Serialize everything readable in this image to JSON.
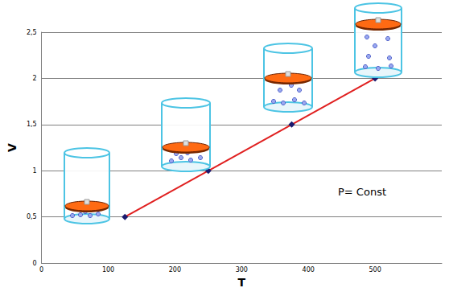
{
  "chart_data": {
    "type": "line",
    "x": [
      125,
      250,
      375,
      500
    ],
    "values": [
      0.5,
      1,
      1.5,
      2
    ],
    "color": "#e02020",
    "marker": "diamond",
    "xlabel": "T",
    "ylabel": "V",
    "xlim": [
      0,
      600
    ],
    "xticks": [
      0,
      100,
      200,
      300,
      400,
      500
    ],
    "ylim": [
      0,
      2.5
    ],
    "yticks": [
      0,
      {
        "value": 0.5,
        "label": "0,5"
      },
      1,
      {
        "value": 1.5,
        "label": "1,5"
      },
      2,
      {
        "value": 2.5,
        "label": "2,5"
      }
    ],
    "grid": true,
    "annotation": "P= Const"
  }
}
